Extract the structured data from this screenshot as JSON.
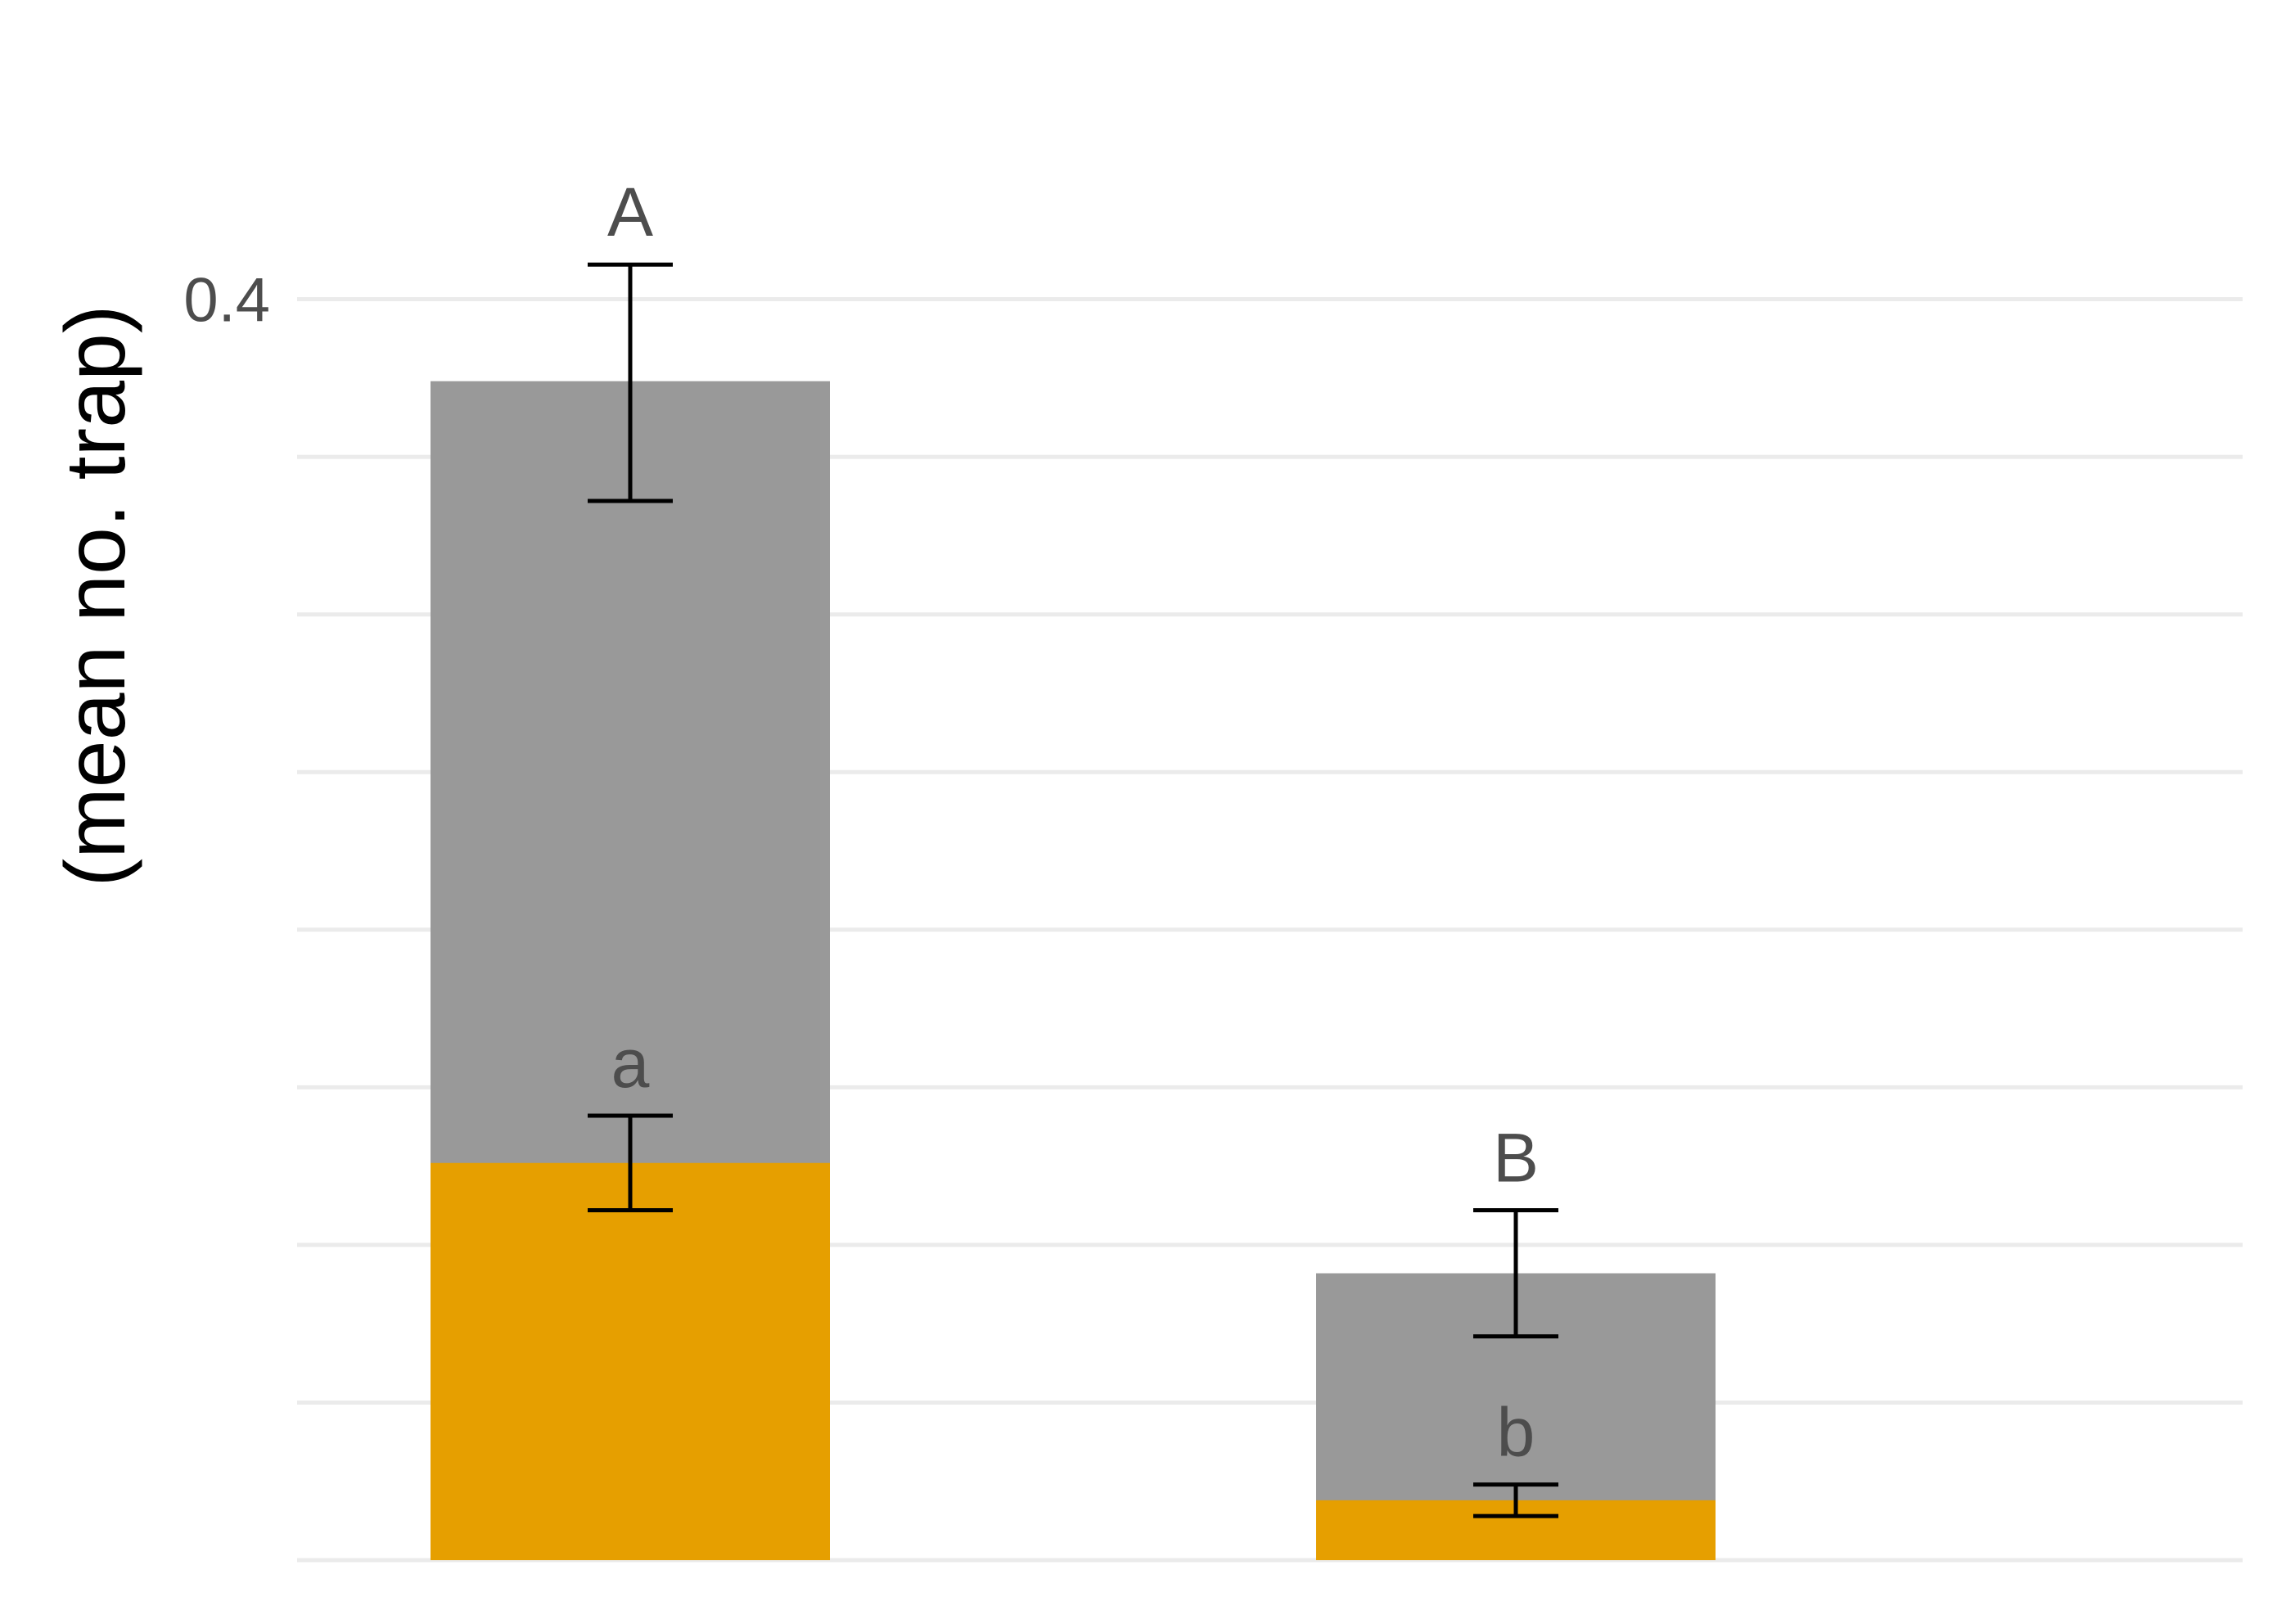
{
  "chart_data": {
    "type": "bar",
    "layout": "overlaid",
    "categories": [
      "",
      ""
    ],
    "ylabel": "(mean no.  trap)",
    "ylim": [
      0,
      0.45
    ],
    "yticks": [
      0.4
    ],
    "ytick_labels": [
      "0.4"
    ],
    "grid": true,
    "series": [
      {
        "color": "#999999",
        "values": [
          0.374,
          0.091
        ],
        "error_low": [
          0.336,
          0.071
        ],
        "error_high": [
          0.411,
          0.111
        ],
        "labels": [
          "A",
          "B"
        ]
      },
      {
        "color": "#E69F00",
        "values": [
          0.126,
          0.019
        ],
        "error_low": [
          0.111,
          0.014
        ],
        "error_high": [
          0.141,
          0.024
        ],
        "labels": [
          "a",
          "b"
        ]
      }
    ]
  }
}
